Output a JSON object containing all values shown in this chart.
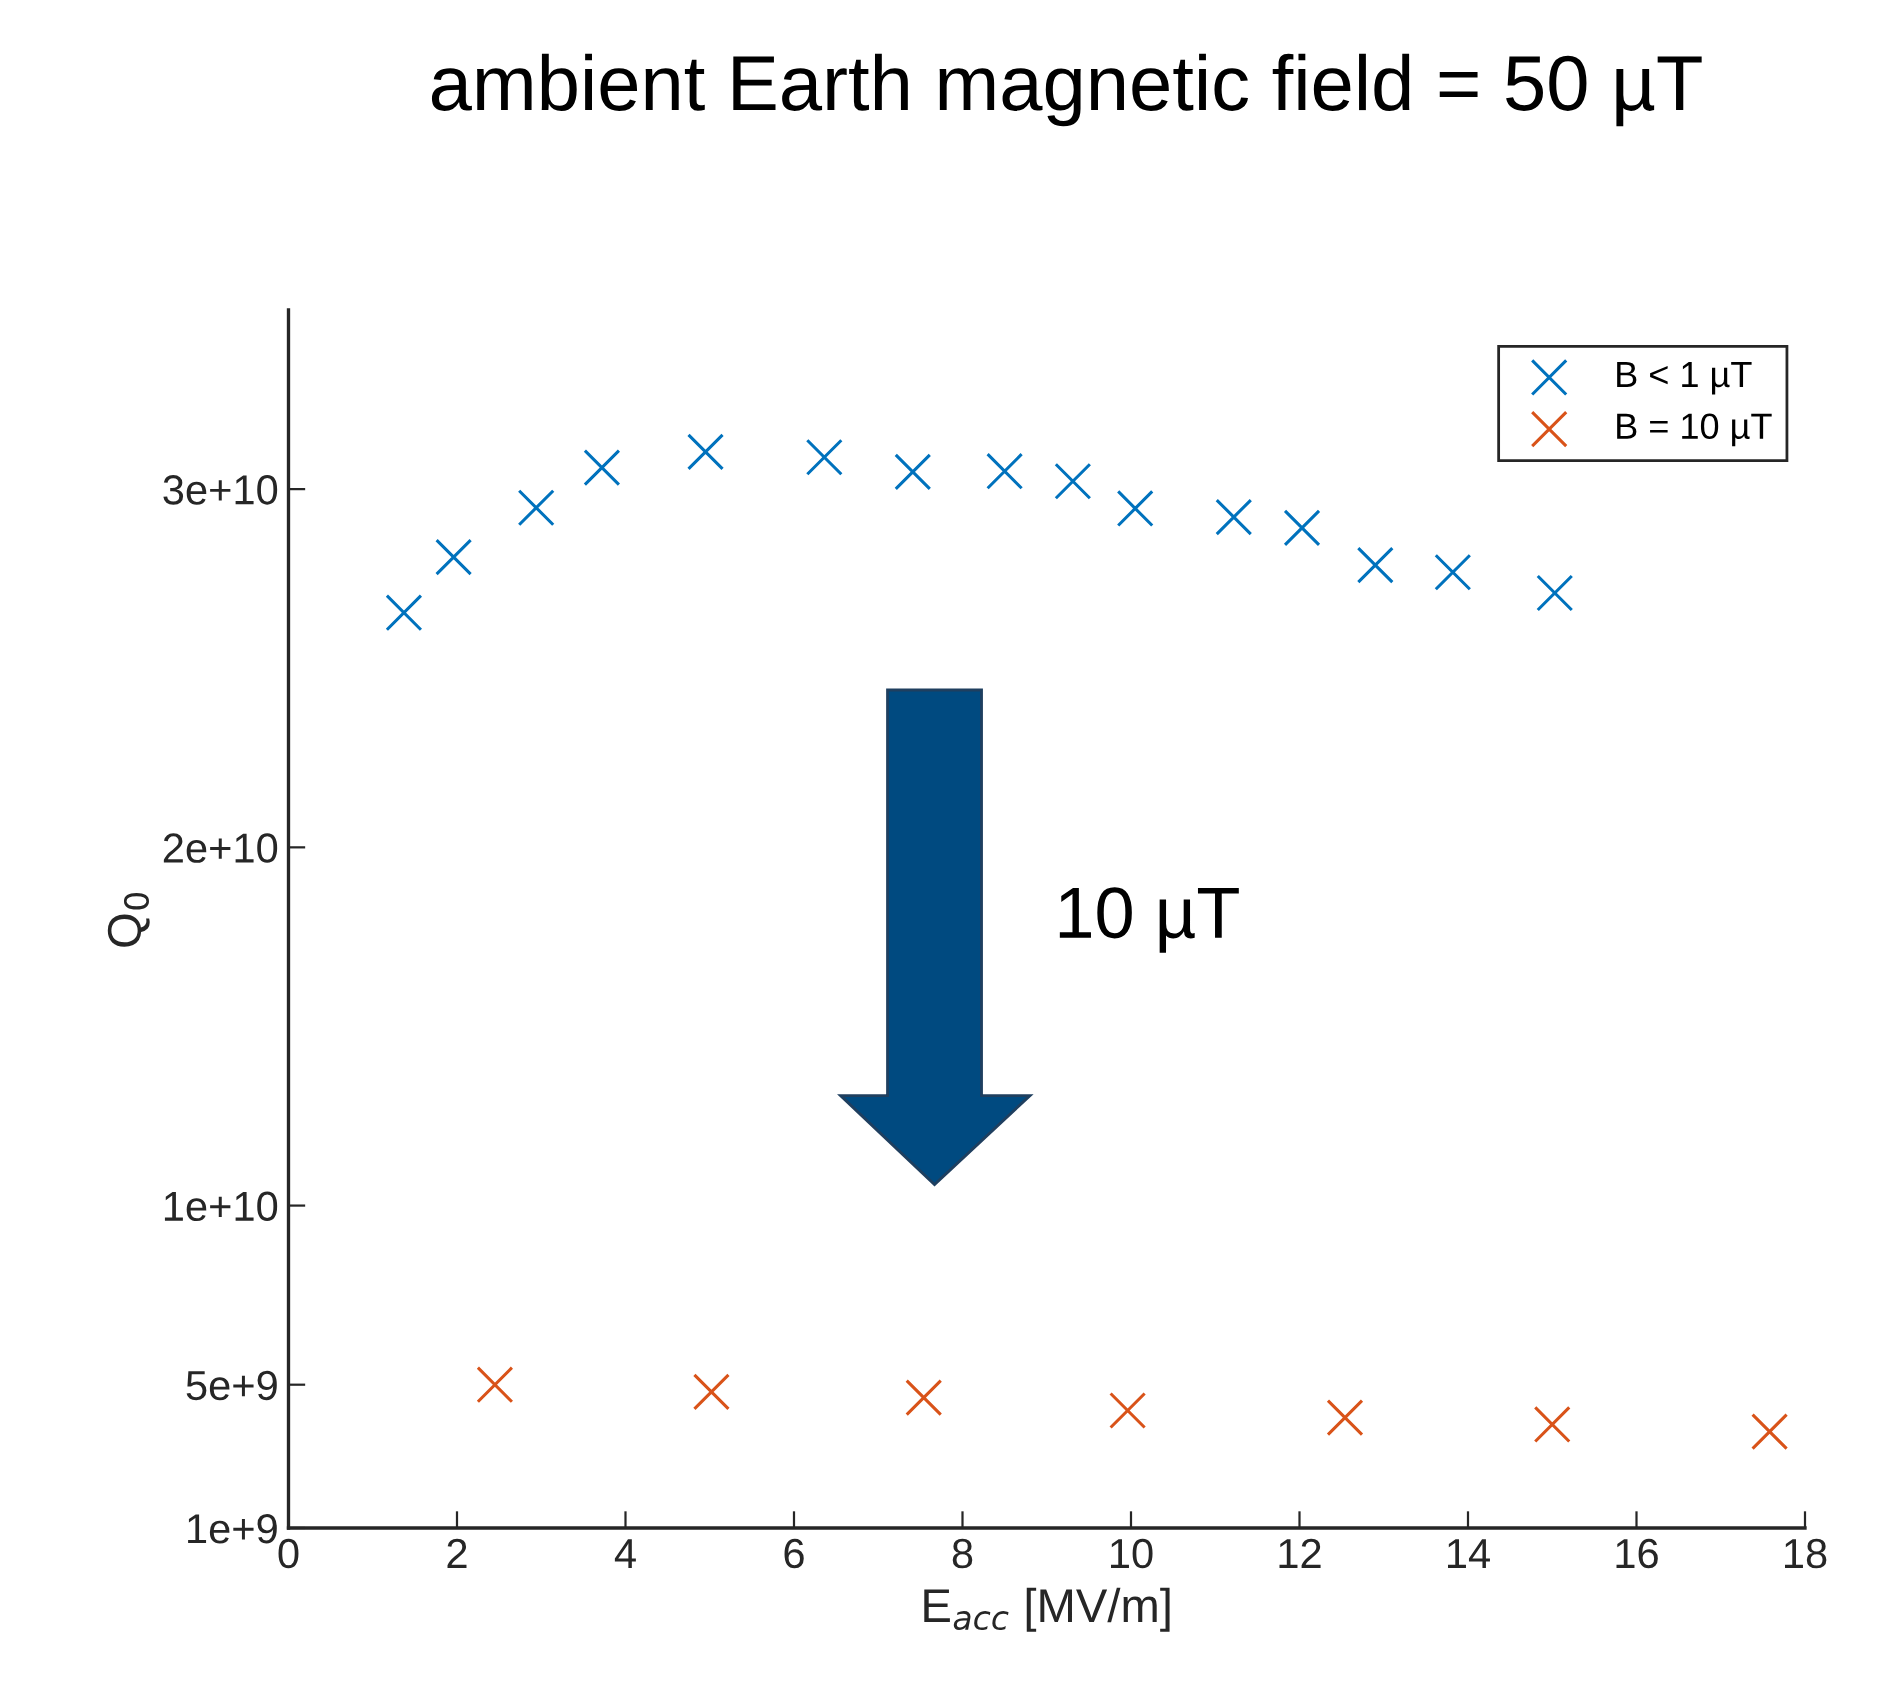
{
  "chart_data": {
    "type": "scatter",
    "title": "ambient Earth magnetic field = 50 µT",
    "xlabel": "E$_{acc}$ [MV/m]",
    "ylabel": "Q$_{0}$",
    "series": [
      {
        "name": "B < 1 µT",
        "color": "#0072bd",
        "x": [
          1.37,
          1.96,
          2.94,
          3.72,
          4.95,
          6.36,
          7.41,
          8.5,
          9.31,
          10.05,
          11.22,
          12.03,
          12.9,
          13.82,
          15.03
        ],
        "values": [
          26550000000.0,
          28100000000.0,
          29480000000.0,
          30600000000.0,
          31040000000.0,
          30890000000.0,
          30480000000.0,
          30500000000.0,
          30220000000.0,
          29460000000.0,
          29220000000.0,
          28920000000.0,
          27880000000.0,
          27680000000.0,
          27100000000.0
        ]
      },
      {
        "name": "B = 10 µT",
        "color": "#d95319",
        "x": [
          2.45,
          5.02,
          7.54,
          9.96,
          12.54,
          15.0,
          17.58
        ],
        "values": [
          5000000000.0,
          4800000000.0,
          4640000000.0,
          4280000000.0,
          4080000000.0,
          3890000000.0,
          3690000000.0
        ]
      }
    ],
    "xlim": [
      0,
      18
    ],
    "xticks": [
      0,
      2,
      4,
      6,
      8,
      10,
      12,
      14,
      16,
      18
    ],
    "ylim": [
      1000000000.0,
      35000000000.0
    ],
    "yticks": [
      {
        "value": 1000000000.0,
        "label": "1e+9"
      },
      {
        "value": 5000000000.0,
        "label": "5e+9"
      },
      {
        "value": 10000000000.0,
        "label": "1e+10"
      },
      {
        "value": 20000000000.0,
        "label": "2e+10"
      },
      {
        "value": 30000000000.0,
        "label": "3e+10"
      }
    ],
    "marker": "cross",
    "grid": false,
    "legend": "top right",
    "annotations": [
      "10 µT"
    ]
  }
}
